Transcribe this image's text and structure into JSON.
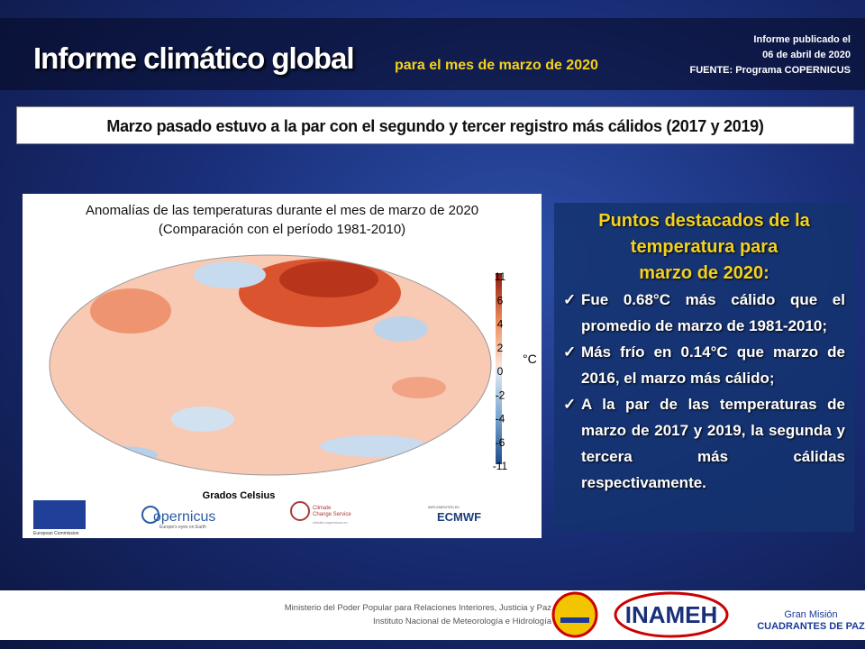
{
  "header": {
    "title": "Informe climático global",
    "subtitle": "para  el mes de marzo de 2020",
    "published": [
      "Informe publicado el",
      "06 de abril de 2020",
      "FUENTE: Programa COPERNICUS"
    ]
  },
  "banner": "Marzo pasado estuvo a la par con el segundo y tercer registro  más cálidos (2017 y 2019)",
  "map_panel": {
    "title": [
      "Anomalías de las temperaturas durante el mes de marzo de 2020",
      "(Comparación con el período 1981-2010)"
    ],
    "colorbar": {
      "labels": [
        "11",
        "6",
        "4",
        "2",
        "0",
        "-2",
        "-4",
        "-6",
        "-11"
      ],
      "unit": "°C"
    },
    "caption": "Grados Celsius",
    "logos": {
      "eu": "European Commission",
      "copernicus": "opernicus",
      "copernicus_tag": "Europe's eyes on Earth",
      "c3s": [
        "Climate",
        "Change Service"
      ],
      "c3s_url": "climate.copernicus.eu",
      "ecmwf_tag": "IMPLEMENTED BY",
      "ecmwf": "ECMWF"
    }
  },
  "highlights": {
    "heading": [
      "Puntos destacados de la",
      "temperatura para",
      "marzo de 2020:"
    ],
    "bullets": [
      "Fue 0.68°C más cálido que el promedio de marzo de 1981-2010;",
      "Más frío en 0.14°C que marzo de 2016, el marzo más cálido;",
      "A la par de las temperaturas de marzo de 2017 y 2019, la segunda y tercera más cálidas respectivamente."
    ]
  },
  "footer": {
    "ministry": [
      "Ministerio del Poder Popular para Relaciones Interiores, Justicia y Paz",
      "Instituto  Nacional de Meteorología e Hidrología"
    ],
    "inameh": "INAMEH",
    "gm": [
      "Gran Misión",
      "CUADRANTES DE PAZ"
    ]
  }
}
